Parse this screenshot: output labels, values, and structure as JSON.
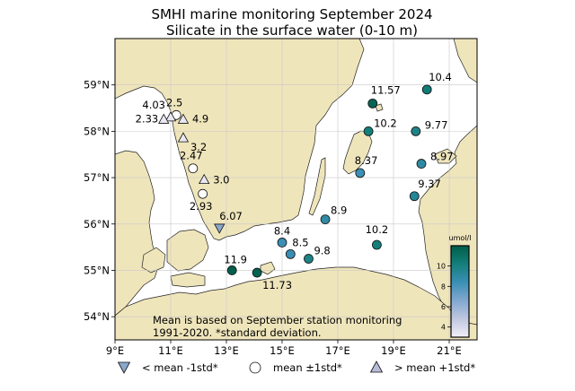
{
  "title": {
    "line1": "SMHI marine monitoring September 2024",
    "line2": "Silicate in the surface water (0-10 m)"
  },
  "map": {
    "lon_range": [
      9,
      22
    ],
    "lat_range": [
      53.5,
      60
    ],
    "x_ticks": [
      "9°E",
      "11°E",
      "13°E",
      "15°E",
      "17°E",
      "19°E",
      "21°E"
    ],
    "y_ticks": [
      "54°N",
      "55°N",
      "56°N",
      "57°N",
      "58°N",
      "59°N"
    ],
    "colors": {
      "land": "#efe5bb",
      "sea": "#ffffff",
      "grid": "#c8c8c8"
    }
  },
  "stations": [
    {
      "lon": 11.2,
      "lat": 58.35,
      "label": "2.5",
      "marker": "circle",
      "value": 2.5
    },
    {
      "lon": 11.0,
      "lat": 58.3,
      "label": "4.03",
      "marker": "triangle-up",
      "value": 4.03
    },
    {
      "lon": 10.75,
      "lat": 58.25,
      "label": "2.33",
      "marker": "triangle-up",
      "value": 2.33
    },
    {
      "lon": 11.45,
      "lat": 58.25,
      "label": "4.9",
      "marker": "triangle-up",
      "value": 4.9
    },
    {
      "lon": 11.45,
      "lat": 57.85,
      "label": "3.2",
      "marker": "triangle-up",
      "value": 3.2
    },
    {
      "lon": 11.8,
      "lat": 57.2,
      "label": "2.47",
      "marker": "circle",
      "value": 2.47
    },
    {
      "lon": 12.2,
      "lat": 56.95,
      "label": "3.0",
      "marker": "triangle-up",
      "value": 3.0
    },
    {
      "lon": 12.15,
      "lat": 56.65,
      "label": "2.93",
      "marker": "circle",
      "value": 2.93
    },
    {
      "lon": 12.75,
      "lat": 55.9,
      "label": "6.07",
      "marker": "triangle-down",
      "value": 6.07
    },
    {
      "lon": 13.2,
      "lat": 55.0,
      "label": "11.9",
      "marker": "circle",
      "value": 11.9
    },
    {
      "lon": 14.1,
      "lat": 54.95,
      "label": "11.73",
      "marker": "circle",
      "value": 11.73
    },
    {
      "lon": 15.0,
      "lat": 55.6,
      "label": "8.4",
      "marker": "circle",
      "value": 8.4
    },
    {
      "lon": 15.3,
      "lat": 55.35,
      "label": "8.5",
      "marker": "circle",
      "value": 8.5
    },
    {
      "lon": 15.95,
      "lat": 55.25,
      "label": "9.8",
      "marker": "circle",
      "value": 9.8
    },
    {
      "lon": 16.55,
      "lat": 56.1,
      "label": "8.9",
      "marker": "circle",
      "value": 8.9
    },
    {
      "lon": 18.4,
      "lat": 55.55,
      "label": "10.2",
      "marker": "circle",
      "value": 10.2
    },
    {
      "lon": 17.8,
      "lat": 57.1,
      "label": "8.37",
      "marker": "circle",
      "value": 8.37
    },
    {
      "lon": 18.1,
      "lat": 58.0,
      "label": "10.2",
      "marker": "circle",
      "value": 10.2
    },
    {
      "lon": 18.25,
      "lat": 58.6,
      "label": "11.57",
      "marker": "circle",
      "value": 11.57
    },
    {
      "lon": 20.2,
      "lat": 58.9,
      "label": "10.4",
      "marker": "circle",
      "value": 10.4
    },
    {
      "lon": 19.8,
      "lat": 58.0,
      "label": "9.77",
      "marker": "circle",
      "value": 9.77
    },
    {
      "lon": 20.0,
      "lat": 57.3,
      "label": "8.97",
      "marker": "circle",
      "value": 8.97
    },
    {
      "lon": 19.75,
      "lat": 56.6,
      "label": "9.37",
      "marker": "circle",
      "value": 9.37
    }
  ],
  "colorbar": {
    "title": "umol/l",
    "min": 3,
    "max": 12,
    "ticks": [
      "4",
      "6",
      "8",
      "10"
    ],
    "colors": [
      "#f3eff8",
      "#c0c8e0",
      "#82a8d0",
      "#3b8fb5",
      "#137f7a",
      "#005d48"
    ]
  },
  "note": {
    "line1": "Mean is based on September station monitoring",
    "line2": "1991-2020. *standard deviation."
  },
  "legend": [
    {
      "marker": "triangle-down",
      "label": "< mean -1std*",
      "color": "#8aa8cc"
    },
    {
      "marker": "circle",
      "label": "mean ±1std*",
      "color": "#ffffff"
    },
    {
      "marker": "triangle-up",
      "label": "> mean +1std*",
      "color": "#b8bcd8"
    }
  ]
}
